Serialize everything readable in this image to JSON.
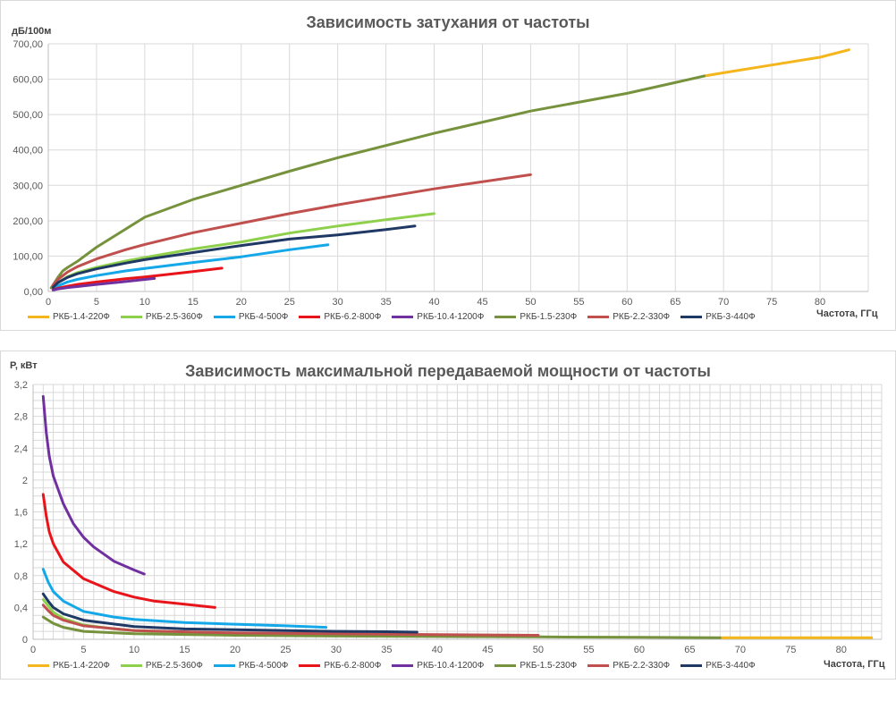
{
  "colors": {
    "РКБ-1.4-220Ф": "#f5b51c",
    "РКБ-2.5-360Ф": "#8ed04b",
    "РКБ-4-500Ф": "#14a8e8",
    "РКБ-6.2-800Ф": "#e8141a",
    "РКБ-10.4-1200Ф": "#7030a0",
    "РКБ-1.5-230Ф": "#76923c",
    "РКБ-2.2-330Ф": "#c0504d",
    "РКБ-3-440Ф": "#1f3864"
  },
  "chart_data": [
    {
      "type": "line",
      "title": "Зависимость затухания  от частоты",
      "xlabel": "Частота,  ГГц",
      "ylabel": "дБ/100м",
      "xlim": [
        0,
        85
      ],
      "ylim": [
        0,
        700
      ],
      "xticks": [
        "0",
        "5",
        "10",
        "15",
        "20",
        "25",
        "30",
        "35",
        "40",
        "45",
        "50",
        "55",
        "60",
        "65",
        "70",
        "75",
        "80"
      ],
      "yticks": [
        "0,00",
        "100,00",
        "200,00",
        "300,00",
        "400,00",
        "500,00",
        "600,00",
        "700,00"
      ],
      "grid": true,
      "legend_position": "bottom",
      "series": [
        {
          "name": "РКБ-1.4-220Ф",
          "x": [
            68,
            70,
            75,
            80,
            83
          ],
          "y": [
            609,
            618,
            640,
            662,
            683
          ]
        },
        {
          "name": "РКБ-2.5-360Ф",
          "x": [
            0.5,
            1,
            2,
            3,
            5,
            8,
            10,
            15,
            20,
            25,
            30,
            35,
            40
          ],
          "y": [
            12,
            25,
            42,
            53,
            68,
            86,
            96,
            120,
            140,
            165,
            185,
            203,
            220
          ]
        },
        {
          "name": "РКБ-4-500Ф",
          "x": [
            0.5,
            1,
            2,
            3,
            5,
            8,
            10,
            15,
            20,
            25,
            29
          ],
          "y": [
            8,
            16,
            27,
            34,
            45,
            58,
            65,
            82,
            98,
            118,
            132
          ]
        },
        {
          "name": "РКБ-6.2-800Ф",
          "x": [
            0.5,
            1,
            2,
            3,
            5,
            8,
            10,
            12,
            15,
            18
          ],
          "y": [
            5,
            9,
            15,
            20,
            27,
            36,
            41,
            47,
            56,
            66
          ]
        },
        {
          "name": "РКБ-10.4-1200Ф",
          "x": [
            0.5,
            1,
            2,
            3,
            5,
            8,
            11
          ],
          "y": [
            4,
            7,
            11,
            14,
            20,
            28,
            37
          ]
        },
        {
          "name": "РКБ-1.5-230Ф",
          "x": [
            0.3,
            1,
            1.5,
            2,
            3,
            5,
            10,
            15,
            20,
            25,
            30,
            40,
            50,
            60,
            68
          ],
          "y": [
            10,
            40,
            58,
            68,
            85,
            125,
            210,
            260,
            300,
            340,
            378,
            447,
            510,
            560,
            609
          ]
        },
        {
          "name": "РКБ-2.2-330Ф",
          "x": [
            0.5,
            1,
            2,
            3,
            5,
            8,
            10,
            15,
            20,
            25,
            30,
            40,
            50
          ],
          "y": [
            18,
            34,
            55,
            70,
            92,
            118,
            133,
            166,
            193,
            220,
            245,
            290,
            330
          ]
        },
        {
          "name": "РКБ-3-440Ф",
          "x": [
            0.5,
            1,
            2,
            3,
            5,
            8,
            10,
            15,
            20,
            25,
            30,
            35,
            38
          ],
          "y": [
            12,
            25,
            40,
            50,
            64,
            80,
            90,
            110,
            130,
            148,
            160,
            175,
            185
          ]
        }
      ]
    },
    {
      "type": "line",
      "title": "Зависимость максимальной  передаваемой  мощности  от частоты",
      "xlabel": "Частота,  ГГц",
      "ylabel": "Р, кВт",
      "xlim": [
        0,
        84
      ],
      "ylim": [
        0,
        3.2
      ],
      "xticks": [
        "0",
        "5",
        "10",
        "15",
        "20",
        "25",
        "30",
        "35",
        "40",
        "45",
        "50",
        "55",
        "60",
        "65",
        "70",
        "75",
        "80"
      ],
      "yticks": [
        "0",
        "0,4",
        "0,8",
        "1,2",
        "1,6",
        "2",
        "2,4",
        "2,8",
        "3,2"
      ],
      "grid": true,
      "legend_position": "bottom",
      "series": [
        {
          "name": "РКБ-1.4-220Ф",
          "x": [
            68,
            70,
            75,
            80,
            83
          ],
          "y": [
            0.02,
            0.02,
            0.02,
            0.02,
            0.02
          ]
        },
        {
          "name": "РКБ-2.5-360Ф",
          "x": [
            1,
            1.5,
            2,
            3,
            5,
            8,
            10,
            15,
            20,
            25,
            30,
            35,
            40
          ],
          "y": [
            0.5,
            0.42,
            0.34,
            0.26,
            0.18,
            0.13,
            0.11,
            0.085,
            0.07,
            0.06,
            0.055,
            0.05,
            0.045
          ]
        },
        {
          "name": "РКБ-4-500Ф",
          "x": [
            1,
            1.5,
            2,
            3,
            5,
            8,
            10,
            15,
            20,
            25,
            29
          ],
          "y": [
            0.88,
            0.72,
            0.6,
            0.48,
            0.35,
            0.28,
            0.25,
            0.21,
            0.19,
            0.17,
            0.15
          ]
        },
        {
          "name": "РКБ-6.2-800Ф",
          "x": [
            1,
            1.3,
            1.6,
            2,
            3,
            5,
            8,
            10,
            12,
            15,
            18
          ],
          "y": [
            1.82,
            1.55,
            1.35,
            1.2,
            0.97,
            0.76,
            0.6,
            0.53,
            0.48,
            0.44,
            0.4
          ]
        },
        {
          "name": "РКБ-10.4-1200Ф",
          "x": [
            1,
            1.3,
            1.6,
            2,
            3,
            4,
            5,
            6,
            8,
            10,
            11
          ],
          "y": [
            3.05,
            2.6,
            2.3,
            2.05,
            1.7,
            1.45,
            1.28,
            1.16,
            0.98,
            0.87,
            0.82
          ]
        },
        {
          "name": "РКБ-1.5-230Ф",
          "x": [
            1,
            1.5,
            2,
            3,
            5,
            10,
            20,
            30,
            40,
            50,
            60,
            68
          ],
          "y": [
            0.28,
            0.24,
            0.2,
            0.15,
            0.1,
            0.07,
            0.05,
            0.04,
            0.035,
            0.03,
            0.025,
            0.02
          ]
        },
        {
          "name": "РКБ-2.2-330Ф",
          "x": [
            1,
            1.5,
            2,
            3,
            5,
            10,
            20,
            30,
            40,
            50
          ],
          "y": [
            0.43,
            0.36,
            0.3,
            0.24,
            0.17,
            0.11,
            0.08,
            0.07,
            0.06,
            0.05
          ]
        },
        {
          "name": "РКБ-3-440Ф",
          "x": [
            1,
            1.5,
            2,
            3,
            5,
            10,
            15,
            20,
            25,
            30,
            35,
            38
          ],
          "y": [
            0.57,
            0.48,
            0.4,
            0.32,
            0.24,
            0.16,
            0.13,
            0.12,
            0.11,
            0.1,
            0.095,
            0.09
          ]
        }
      ]
    }
  ]
}
